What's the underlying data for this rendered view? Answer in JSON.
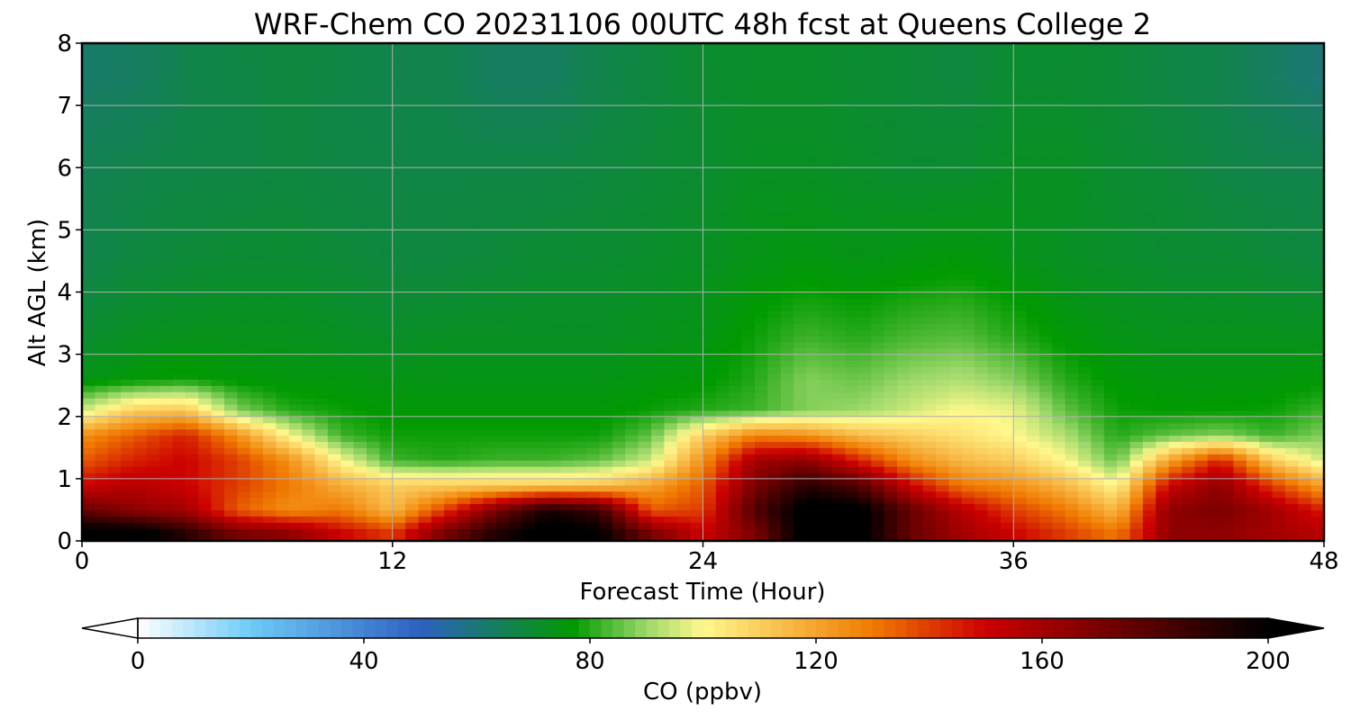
{
  "chart_data": {
    "type": "heatmap",
    "title": "WRF-Chem CO  20231106 00UTC 48h fcst at Queens College 2",
    "xlabel": "Forecast Time (Hour)",
    "ylabel": "Alt AGL (km)",
    "xlim": [
      0,
      48
    ],
    "ylim": [
      0,
      8
    ],
    "xticks": [
      0,
      12,
      24,
      36,
      48
    ],
    "yticks": [
      0,
      1,
      2,
      3,
      4,
      5,
      6,
      7,
      8
    ],
    "grid": true,
    "x_hours": [
      0,
      2,
      4,
      6,
      8,
      10,
      12,
      14,
      16,
      18,
      20,
      22,
      24,
      26,
      28,
      30,
      32,
      34,
      36,
      38,
      40,
      42,
      44,
      46,
      48
    ],
    "y_levels_km": [
      0.15,
      0.5,
      0.9,
      1.3,
      1.7,
      2.1,
      2.6,
      3.3,
      4.5,
      6.0,
      7.5
    ],
    "co_ppbv": [
      [
        205,
        205,
        190,
        170,
        165,
        150,
        140,
        170,
        192,
        205,
        200,
        170,
        150,
        170,
        205,
        205,
        175,
        160,
        150,
        140,
        130,
        165,
        165,
        160,
        155
      ],
      [
        175,
        165,
        160,
        135,
        125,
        130,
        115,
        140,
        170,
        195,
        185,
        135,
        140,
        180,
        205,
        205,
        175,
        155,
        140,
        130,
        115,
        165,
        170,
        160,
        145
      ],
      [
        150,
        155,
        150,
        140,
        130,
        118,
        110,
        110,
        110,
        110,
        112,
        120,
        135,
        170,
        190,
        180,
        150,
        130,
        125,
        115,
        100,
        150,
        165,
        140,
        120
      ],
      [
        135,
        145,
        150,
        140,
        125,
        100,
        82,
        80,
        82,
        82,
        85,
        95,
        125,
        160,
        165,
        145,
        125,
        115,
        110,
        100,
        85,
        120,
        145,
        110,
        95
      ],
      [
        125,
        135,
        145,
        125,
        100,
        82,
        78,
        78,
        78,
        78,
        78,
        85,
        110,
        128,
        125,
        115,
        110,
        105,
        100,
        92,
        80,
        85,
        88,
        82,
        88
      ],
      [
        95,
        110,
        112,
        88,
        80,
        78,
        76,
        76,
        76,
        76,
        76,
        78,
        80,
        82,
        88,
        90,
        95,
        100,
        98,
        85,
        78,
        77,
        77,
        78,
        82
      ],
      [
        74,
        76,
        78,
        76,
        75,
        75,
        74,
        74,
        74,
        74,
        74,
        75,
        76,
        80,
        88,
        86,
        90,
        92,
        88,
        80,
        76,
        75,
        75,
        75,
        76
      ],
      [
        70,
        72,
        73,
        73,
        73,
        72,
        71,
        72,
        72,
        72,
        72,
        73,
        74,
        78,
        82,
        80,
        83,
        84,
        80,
        76,
        74,
        73,
        73,
        73,
        73
      ],
      [
        66,
        68,
        69,
        70,
        70,
        69,
        68,
        68,
        69,
        70,
        70,
        71,
        72,
        74,
        75,
        74,
        75,
        76,
        74,
        72,
        71,
        70,
        70,
        69,
        68
      ],
      [
        65,
        66,
        67,
        67,
        68,
        67,
        67,
        67,
        67,
        67,
        68,
        69,
        70,
        72,
        72,
        71,
        70,
        70,
        72,
        72,
        70,
        69,
        67,
        66,
        66
      ],
      [
        62,
        63,
        66,
        67,
        68,
        67,
        66,
        66,
        63,
        63,
        66,
        68,
        70,
        71,
        71,
        70,
        69,
        68,
        70,
        70,
        69,
        67,
        66,
        63,
        60
      ]
    ],
    "colorbar": {
      "label": "CO  (ppbv)",
      "min": 0,
      "max": 200,
      "ticks": [
        0,
        40,
        80,
        120,
        160,
        200
      ],
      "extend": "both",
      "orientation": "horizontal",
      "stops": [
        {
          "v": 0,
          "c": "#ffffff"
        },
        {
          "v": 20,
          "c": "#6ecbf7"
        },
        {
          "v": 50,
          "c": "#2e60c0"
        },
        {
          "v": 62,
          "c": "#187b68"
        },
        {
          "v": 77,
          "c": "#009a00"
        },
        {
          "v": 90,
          "c": "#9cd86a"
        },
        {
          "v": 100,
          "c": "#fff88c"
        },
        {
          "v": 130,
          "c": "#f07a00"
        },
        {
          "v": 150,
          "c": "#cc0000"
        },
        {
          "v": 200,
          "c": "#000000"
        }
      ]
    }
  }
}
